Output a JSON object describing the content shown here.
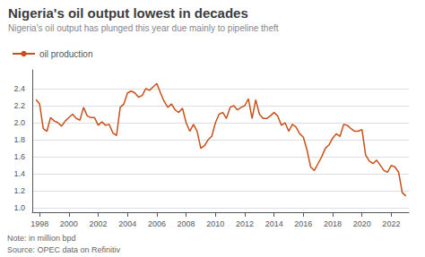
{
  "chart_data": {
    "type": "line",
    "title": "Nigeria's oil output lowest in decades",
    "subtitle": "Nigeria's oil output has plunged this year due mainly to pipeline theft",
    "annotations": [
      "Note: in million bpd",
      "Source: OPEC data on Refinitiv"
    ],
    "legend": "top",
    "grid": true,
    "xlim": [
      1997.5,
      2023.2
    ],
    "xticks": [
      1998,
      2000,
      2002,
      2004,
      2006,
      2008,
      2010,
      2012,
      2014,
      2016,
      2018,
      2020,
      2022
    ],
    "ylim": [
      0.95,
      2.62
    ],
    "yticks": [
      {
        "value": 1.0,
        "label": "1.0"
      },
      1.2,
      1.4,
      1.6,
      1.8,
      {
        "value": 2.0,
        "label": "2.0"
      },
      2.2,
      2.4
    ],
    "x": [
      1997.75,
      1998.0,
      1998.25,
      1998.5,
      1998.75,
      1999.0,
      1999.25,
      1999.5,
      1999.75,
      2000.0,
      2000.25,
      2000.5,
      2000.75,
      2001.0,
      2001.25,
      2001.5,
      2001.75,
      2002.0,
      2002.25,
      2002.5,
      2002.75,
      2003.0,
      2003.25,
      2003.5,
      2003.75,
      2004.0,
      2004.25,
      2004.5,
      2004.75,
      2005.0,
      2005.25,
      2005.5,
      2005.75,
      2006.0,
      2006.25,
      2006.5,
      2006.75,
      2007.0,
      2007.25,
      2007.5,
      2007.75,
      2008.0,
      2008.25,
      2008.5,
      2008.75,
      2009.0,
      2009.25,
      2009.5,
      2009.75,
      2010.0,
      2010.25,
      2010.5,
      2010.75,
      2011.0,
      2011.25,
      2011.5,
      2011.75,
      2012.0,
      2012.25,
      2012.5,
      2012.75,
      2013.0,
      2013.25,
      2013.5,
      2013.75,
      2014.0,
      2014.25,
      2014.5,
      2014.75,
      2015.0,
      2015.25,
      2015.5,
      2015.75,
      2016.0,
      2016.25,
      2016.5,
      2016.75,
      2017.0,
      2017.25,
      2017.5,
      2017.75,
      2018.0,
      2018.25,
      2018.5,
      2018.75,
      2019.0,
      2019.25,
      2019.5,
      2019.75,
      2020.0,
      2020.25,
      2020.5,
      2020.75,
      2021.0,
      2021.25,
      2021.5,
      2021.75,
      2022.0,
      2022.25,
      2022.5,
      2022.75,
      2023.0
    ],
    "series": [
      {
        "name": "oil production",
        "color": "#C8501A",
        "values": [
          2.27,
          2.22,
          1.93,
          1.9,
          2.06,
          2.02,
          2.0,
          1.96,
          2.02,
          2.06,
          2.1,
          2.05,
          2.03,
          2.18,
          2.08,
          2.06,
          2.06,
          1.97,
          2.01,
          1.97,
          1.98,
          1.88,
          1.85,
          2.18,
          2.22,
          2.35,
          2.37,
          2.35,
          2.3,
          2.32,
          2.4,
          2.38,
          2.42,
          2.46,
          2.35,
          2.25,
          2.18,
          2.22,
          2.15,
          2.12,
          2.17,
          2.0,
          1.9,
          1.98,
          1.9,
          1.7,
          1.73,
          1.8,
          1.84,
          2.0,
          2.1,
          2.12,
          2.05,
          2.18,
          2.2,
          2.15,
          2.18,
          2.2,
          2.28,
          2.05,
          2.27,
          2.1,
          2.05,
          2.05,
          2.08,
          2.12,
          2.08,
          1.97,
          2.0,
          1.9,
          1.98,
          1.95,
          1.87,
          1.83,
          1.68,
          1.48,
          1.44,
          1.52,
          1.6,
          1.7,
          1.74,
          1.82,
          1.87,
          1.84,
          1.98,
          1.97,
          1.93,
          1.9,
          1.9,
          1.92,
          1.62,
          1.55,
          1.52,
          1.56,
          1.5,
          1.44,
          1.42,
          1.5,
          1.48,
          1.42,
          1.18,
          1.14
        ]
      }
    ]
  }
}
